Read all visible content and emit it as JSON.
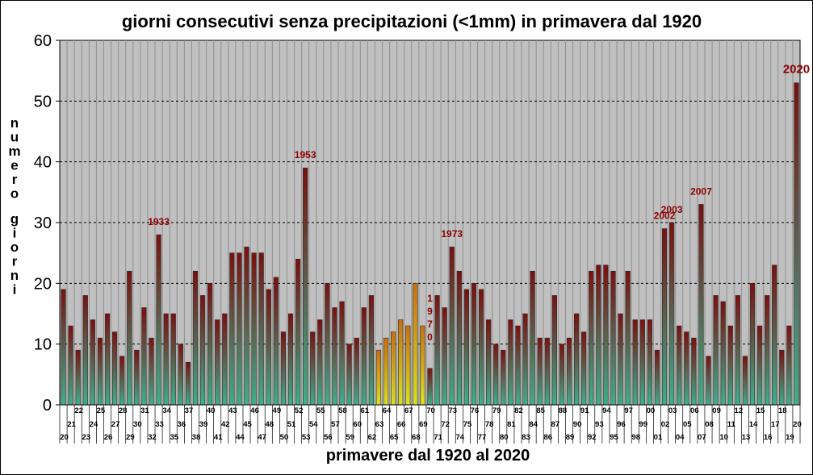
{
  "chart_data": {
    "type": "bar",
    "title": "giorni consecutivi senza precipitazioni (<1mm) in primavera dal 1920",
    "xlabel": "primavere dal 1920 al 2020",
    "ylabel": "numero giorni",
    "ylim": [
      0,
      60
    ],
    "yticks": [
      0,
      10,
      20,
      30,
      40,
      50,
      60
    ],
    "grid": true,
    "categories": [
      "20",
      "21",
      "22",
      "23",
      "24",
      "25",
      "26",
      "27",
      "28",
      "29",
      "30",
      "31",
      "32",
      "33",
      "34",
      "35",
      "36",
      "37",
      "38",
      "39",
      "40",
      "41",
      "42",
      "43",
      "44",
      "45",
      "46",
      "47",
      "48",
      "49",
      "50",
      "51",
      "52",
      "53",
      "54",
      "55",
      "56",
      "57",
      "58",
      "59",
      "60",
      "61",
      "62",
      "63",
      "64",
      "65",
      "66",
      "67",
      "68",
      "69",
      "70",
      "71",
      "72",
      "73",
      "74",
      "75",
      "76",
      "77",
      "78",
      "79",
      "80",
      "81",
      "82",
      "83",
      "84",
      "85",
      "86",
      "87",
      "88",
      "89",
      "90",
      "91",
      "92",
      "93",
      "94",
      "95",
      "96",
      "97",
      "98",
      "99",
      "00",
      "01",
      "02",
      "03",
      "04",
      "05",
      "06",
      "07",
      "08",
      "09",
      "10",
      "11",
      "12",
      "13",
      "14",
      "15",
      "16",
      "17",
      "18",
      "19",
      "20"
    ],
    "values": [
      19,
      13,
      9,
      18,
      14,
      11,
      15,
      12,
      8,
      22,
      9,
      16,
      11,
      28,
      15,
      15,
      10,
      7,
      22,
      18,
      20,
      14,
      15,
      25,
      25,
      26,
      25,
      25,
      19,
      21,
      12,
      15,
      24,
      39,
      12,
      14,
      20,
      16,
      17,
      10,
      11,
      16,
      18,
      9,
      11,
      12,
      14,
      13,
      20,
      13,
      6,
      18,
      16,
      26,
      22,
      19,
      20,
      19,
      14,
      10,
      9,
      14,
      13,
      15,
      22,
      11,
      11,
      18,
      10,
      11,
      15,
      12,
      22,
      23,
      23,
      22,
      15,
      22,
      14,
      14,
      14,
      9,
      29,
      30,
      13,
      12,
      11,
      33,
      8,
      18,
      17,
      13,
      18,
      8,
      20,
      13,
      18,
      23,
      9,
      13,
      53
    ],
    "annotations": [
      {
        "label": "1933",
        "year_index": 13
      },
      {
        "label": "1953",
        "year_index": 33
      },
      {
        "label": "1973",
        "year_index": 53
      },
      {
        "label": "2002",
        "year_index": 82
      },
      {
        "label": "2003",
        "year_index": 83
      },
      {
        "label": "2007",
        "year_index": 87
      },
      {
        "label": "2020",
        "year_index": 100
      }
    ],
    "vertical_label": {
      "chars": [
        "1",
        "9",
        "7",
        "0"
      ],
      "year_index": 50
    },
    "colors": {
      "plot_bg": "#c0c0c0",
      "bar_top": "#7a1010",
      "bar_bottom": "#3db08a",
      "bar_highlight_top": "#c87010",
      "bar_highlight_bottom": "#d8e020",
      "annotation": "#8b0000"
    },
    "highlight_range": [
      43,
      49
    ]
  }
}
